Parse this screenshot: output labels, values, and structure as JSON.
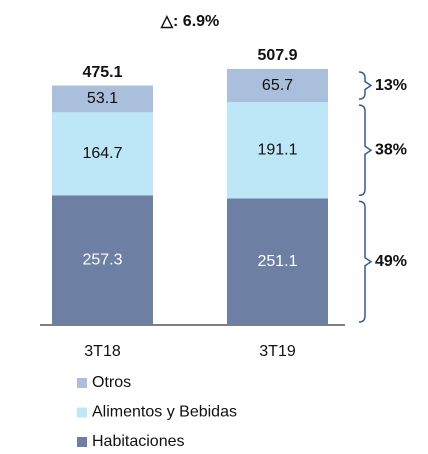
{
  "chart_data": {
    "type": "stacked-bar",
    "title": "△: 6.9%",
    "categories": [
      "3T18",
      "3T19"
    ],
    "series": [
      {
        "name": "Habitaciones",
        "color": "#6d7fa3",
        "values": [
          257.3,
          251.1
        ]
      },
      {
        "name": "Alimentos y Bebidas",
        "color": "#bde6f7",
        "values": [
          164.7,
          191.1
        ]
      },
      {
        "name": "Otros",
        "color": "#a9bfdc",
        "values": [
          53.1,
          65.7
        ]
      }
    ],
    "totals": [
      475.1,
      507.9
    ],
    "shares": [
      49,
      38,
      13
    ],
    "share_labels": [
      "49%",
      "38%",
      "13%"
    ]
  }
}
